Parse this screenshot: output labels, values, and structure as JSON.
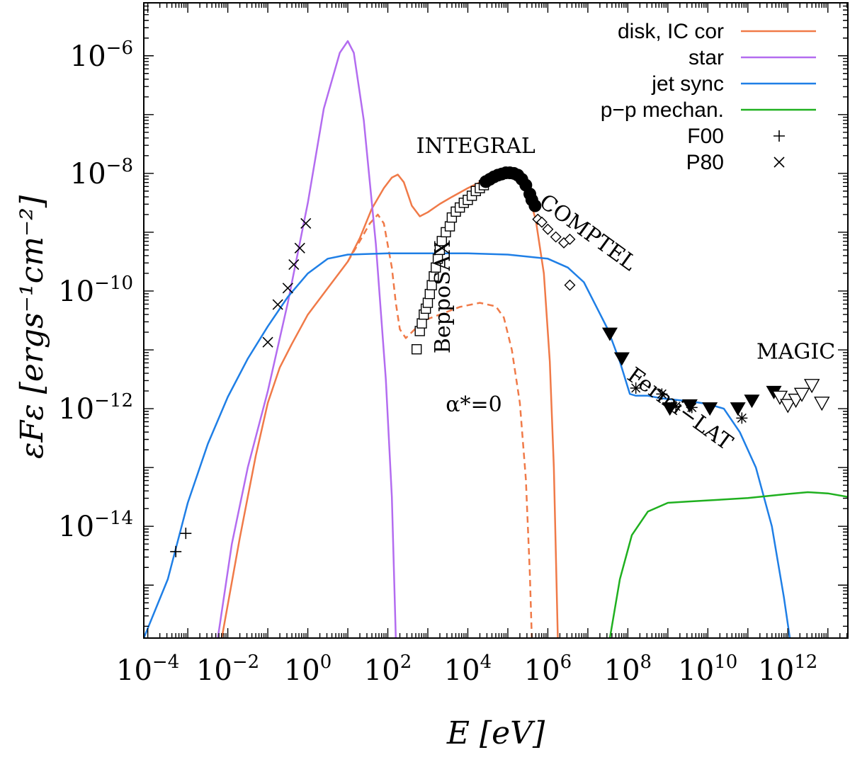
{
  "chart_data": {
    "type": "line",
    "xlabel": "E [eV]",
    "ylabel": "εFε [ergs⁻¹cm⁻²]",
    "x_log": true,
    "y_log": true,
    "xlim_log10": [
      -4.1,
      13.5
    ],
    "ylim_log10": [
      -15.9,
      -5.1
    ],
    "x_ticks": [
      {
        "base": "10",
        "exp": "−4",
        "log": -4
      },
      {
        "base": "10",
        "exp": "−2",
        "log": -2
      },
      {
        "base": "10",
        "exp": "0",
        "log": 0
      },
      {
        "base": "10",
        "exp": "2",
        "log": 2
      },
      {
        "base": "10",
        "exp": "4",
        "log": 4
      },
      {
        "base": "10",
        "exp": "6",
        "log": 6
      },
      {
        "base": "10",
        "exp": "8",
        "log": 8
      },
      {
        "base": "10",
        "exp": "10",
        "log": 10
      },
      {
        "base": "10",
        "exp": "12",
        "log": 12
      }
    ],
    "y_ticks": [
      {
        "base": "10",
        "exp": "−6",
        "log": -6
      },
      {
        "base": "10",
        "exp": "−8",
        "log": -8
      },
      {
        "base": "10",
        "exp": "−10",
        "log": -10
      },
      {
        "base": "10",
        "exp": "−12",
        "log": -12
      },
      {
        "base": "10",
        "exp": "−14",
        "log": -14
      }
    ],
    "legend_position": "top-right",
    "series": [
      {
        "name": "disk, IC cor",
        "color": "#f07a48",
        "style": "solid",
        "points": [
          [
            -2.15,
            -15.9
          ],
          [
            -1.7,
            -14.2
          ],
          [
            -1.3,
            -12.8
          ],
          [
            -1.0,
            -11.9
          ],
          [
            -0.7,
            -11.3
          ],
          [
            -0.4,
            -10.9
          ],
          [
            0.0,
            -10.4
          ],
          [
            0.5,
            -9.95
          ],
          [
            1.0,
            -9.5
          ],
          [
            1.3,
            -9.1
          ],
          [
            1.6,
            -8.6
          ],
          [
            1.9,
            -8.25
          ],
          [
            2.1,
            -8.07
          ],
          [
            2.25,
            -8.02
          ],
          [
            2.4,
            -8.15
          ],
          [
            2.6,
            -8.55
          ],
          [
            2.8,
            -8.73
          ],
          [
            3.0,
            -8.66
          ],
          [
            3.3,
            -8.52
          ],
          [
            3.6,
            -8.4
          ],
          [
            4.0,
            -8.25
          ],
          [
            4.4,
            -8.12
          ],
          [
            4.8,
            -8.03
          ],
          [
            5.1,
            -8.03
          ],
          [
            5.3,
            -8.1
          ],
          [
            5.5,
            -8.3
          ],
          [
            5.7,
            -8.8
          ],
          [
            5.9,
            -9.7
          ],
          [
            6.05,
            -11.2
          ],
          [
            6.15,
            -13.0
          ],
          [
            6.25,
            -15.9
          ]
        ]
      },
      {
        "name": "α*=0",
        "color": "#f07a48",
        "style": "dashed",
        "points": [
          [
            1.0,
            -9.5
          ],
          [
            1.3,
            -9.15
          ],
          [
            1.55,
            -8.85
          ],
          [
            1.75,
            -8.7
          ],
          [
            1.9,
            -8.85
          ],
          [
            2.1,
            -9.6
          ],
          [
            2.2,
            -10.2
          ],
          [
            2.3,
            -10.65
          ],
          [
            2.45,
            -10.8
          ],
          [
            2.6,
            -10.7
          ],
          [
            2.9,
            -10.5
          ],
          [
            3.3,
            -10.4
          ],
          [
            3.8,
            -10.27
          ],
          [
            4.3,
            -10.2
          ],
          [
            4.7,
            -10.26
          ],
          [
            4.9,
            -10.45
          ],
          [
            5.1,
            -11.0
          ],
          [
            5.3,
            -11.9
          ],
          [
            5.45,
            -13.2
          ],
          [
            5.55,
            -14.8
          ],
          [
            5.6,
            -15.9
          ]
        ]
      },
      {
        "name": "star",
        "color": "#b36cf0",
        "style": "solid",
        "points": [
          [
            -2.25,
            -15.9
          ],
          [
            -1.9,
            -14.3
          ],
          [
            -1.5,
            -13.0
          ],
          [
            -1.0,
            -11.7
          ],
          [
            -0.5,
            -10.2
          ],
          [
            0.0,
            -8.5
          ],
          [
            0.4,
            -6.9
          ],
          [
            0.8,
            -5.95
          ],
          [
            1.0,
            -5.75
          ],
          [
            1.15,
            -5.95
          ],
          [
            1.4,
            -7.1
          ],
          [
            1.7,
            -9.2
          ],
          [
            1.95,
            -11.5
          ],
          [
            2.1,
            -13.5
          ],
          [
            2.2,
            -15.9
          ]
        ]
      },
      {
        "name": "jet sync",
        "color": "#1f7fe6",
        "style": "solid",
        "points": [
          [
            -4.1,
            -15.9
          ],
          [
            -3.5,
            -14.9
          ],
          [
            -3.0,
            -13.6
          ],
          [
            -2.5,
            -12.6
          ],
          [
            -2.0,
            -11.8
          ],
          [
            -1.5,
            -11.15
          ],
          [
            -1.0,
            -10.6
          ],
          [
            -0.5,
            -10.1
          ],
          [
            0.0,
            -9.7
          ],
          [
            0.5,
            -9.45
          ],
          [
            1.0,
            -9.38
          ],
          [
            2.0,
            -9.36
          ],
          [
            3.0,
            -9.36
          ],
          [
            4.0,
            -9.36
          ],
          [
            5.0,
            -9.38
          ],
          [
            6.0,
            -9.45
          ],
          [
            6.5,
            -9.6
          ],
          [
            6.9,
            -9.85
          ],
          [
            7.2,
            -10.25
          ],
          [
            7.5,
            -10.65
          ],
          [
            7.8,
            -11.2
          ],
          [
            8.05,
            -11.75
          ],
          [
            8.2,
            -11.78
          ],
          [
            8.5,
            -11.78
          ],
          [
            8.8,
            -11.82
          ],
          [
            9.2,
            -11.85
          ],
          [
            9.6,
            -11.88
          ],
          [
            10.0,
            -11.92
          ],
          [
            10.4,
            -12.0
          ],
          [
            10.8,
            -12.4
          ],
          [
            11.2,
            -13.0
          ],
          [
            11.6,
            -14.0
          ],
          [
            11.9,
            -15.2
          ],
          [
            12.05,
            -15.9
          ]
        ]
      },
      {
        "name": "p−p mechan.",
        "color": "#1fb01f",
        "style": "solid",
        "points": [
          [
            7.55,
            -15.9
          ],
          [
            7.8,
            -14.9
          ],
          [
            8.1,
            -14.15
          ],
          [
            8.5,
            -13.75
          ],
          [
            9.0,
            -13.6
          ],
          [
            9.5,
            -13.58
          ],
          [
            10.0,
            -13.56
          ],
          [
            11.0,
            -13.52
          ],
          [
            12.0,
            -13.45
          ],
          [
            12.5,
            -13.42
          ],
          [
            13.0,
            -13.44
          ],
          [
            13.5,
            -13.5
          ]
        ]
      }
    ],
    "data_sets": [
      {
        "name": "F00",
        "marker": "plus",
        "points": [
          [
            -3.3,
            -14.43
          ],
          [
            -3.05,
            -14.12
          ]
        ]
      },
      {
        "name": "P80",
        "marker": "cross",
        "points": [
          [
            -1.0,
            -10.87
          ],
          [
            -0.75,
            -10.23
          ],
          [
            -0.5,
            -9.95
          ],
          [
            -0.35,
            -9.55
          ],
          [
            -0.2,
            -9.27
          ],
          [
            -0.05,
            -8.85
          ]
        ]
      },
      {
        "name": "BeppoSAX",
        "marker": "open-square",
        "points": [
          [
            2.72,
            -10.99
          ],
          [
            2.8,
            -10.68
          ],
          [
            2.85,
            -10.55
          ],
          [
            2.9,
            -10.4
          ],
          [
            2.95,
            -10.3
          ],
          [
            3.0,
            -10.2
          ],
          [
            3.05,
            -10.05
          ],
          [
            3.1,
            -9.9
          ],
          [
            3.15,
            -9.75
          ],
          [
            3.2,
            -9.6
          ],
          [
            3.25,
            -9.45
          ],
          [
            3.3,
            -9.3
          ],
          [
            3.35,
            -9.15
          ],
          [
            3.45,
            -9.0
          ],
          [
            3.55,
            -8.9
          ],
          [
            3.6,
            -8.75
          ],
          [
            3.7,
            -8.65
          ],
          [
            3.8,
            -8.58
          ],
          [
            3.9,
            -8.5
          ],
          [
            4.0,
            -8.45
          ],
          [
            4.1,
            -8.38
          ],
          [
            4.2,
            -8.3
          ],
          [
            4.3,
            -8.25
          ],
          [
            4.4,
            -8.2
          ]
        ]
      },
      {
        "name": "INTEGRAL",
        "marker": "filled-circle",
        "points": [
          [
            4.45,
            -8.14
          ],
          [
            4.55,
            -8.1
          ],
          [
            4.65,
            -8.06
          ],
          [
            4.75,
            -8.03
          ],
          [
            4.85,
            -8.01
          ],
          [
            4.95,
            -7.99
          ],
          [
            5.05,
            -7.99
          ],
          [
            5.15,
            -8.0
          ],
          [
            5.25,
            -8.03
          ],
          [
            5.35,
            -8.1
          ],
          [
            5.45,
            -8.2
          ],
          [
            5.55,
            -8.35
          ],
          [
            5.6,
            -8.45
          ],
          [
            5.68,
            -8.55
          ]
        ]
      },
      {
        "name": "COMPTEL",
        "marker": "open-diamond",
        "points": [
          [
            5.75,
            -8.78
          ],
          [
            5.85,
            -8.83
          ],
          [
            6.0,
            -8.95
          ],
          [
            6.2,
            -9.08
          ],
          [
            6.4,
            -9.18
          ],
          [
            6.55,
            -9.12
          ],
          [
            6.55,
            -9.9
          ]
        ]
      },
      {
        "name": "Fermi-LAT",
        "marker": "filled-triangle",
        "points": [
          [
            7.55,
            -10.73
          ],
          [
            7.85,
            -11.15
          ],
          [
            9.05,
            -12.0
          ],
          [
            9.55,
            -11.95
          ],
          [
            10.05,
            -12.0
          ],
          [
            10.75,
            -12.0
          ],
          [
            11.1,
            -11.87
          ],
          [
            11.65,
            -11.72
          ]
        ]
      },
      {
        "name": "Fermi-LAT asterisk",
        "marker": "asterisk",
        "points": [
          [
            8.2,
            -11.65
          ],
          [
            8.85,
            -11.75
          ],
          [
            9.2,
            -11.96
          ],
          [
            9.6,
            -11.98
          ],
          [
            10.85,
            -12.16
          ]
        ]
      },
      {
        "name": "MAGIC",
        "marker": "open-triangle",
        "points": [
          [
            11.8,
            -11.8
          ],
          [
            12.0,
            -11.94
          ],
          [
            12.2,
            -11.85
          ],
          [
            12.35,
            -11.75
          ],
          [
            12.6,
            -11.6
          ],
          [
            12.85,
            -11.9
          ]
        ]
      }
    ],
    "legend": [
      {
        "label": "disk, IC cor",
        "kind": "line",
        "color": "#f07a48"
      },
      {
        "label": "star",
        "kind": "line",
        "color": "#b36cf0"
      },
      {
        "label": "jet sync",
        "kind": "line",
        "color": "#1f7fe6"
      },
      {
        "label": "p−p mechan.",
        "kind": "line",
        "color": "#1fb01f"
      },
      {
        "label": "F00",
        "kind": "marker",
        "marker": "plus"
      },
      {
        "label": "P80",
        "kind": "marker",
        "marker": "cross"
      }
    ],
    "annotations": [
      {
        "text": "INTEGRAL",
        "at": [
          4.2,
          -7.65
        ],
        "rotate": 0
      },
      {
        "text": "COMPTEL",
        "at": [
          6.9,
          -9.1
        ],
        "rotate": 36
      },
      {
        "text": "BeppoSAX",
        "at": [
          3.55,
          -10.1
        ],
        "rotate": -90
      },
      {
        "text": "Fermi−LAT",
        "at": [
          9.2,
          -12.1
        ],
        "rotate": 36
      },
      {
        "text": "MAGIC",
        "at": [
          12.2,
          -11.15
        ],
        "rotate": 0
      },
      {
        "text": "α*=0",
        "at": [
          4.15,
          -12.05
        ],
        "rotate": 0
      }
    ]
  }
}
